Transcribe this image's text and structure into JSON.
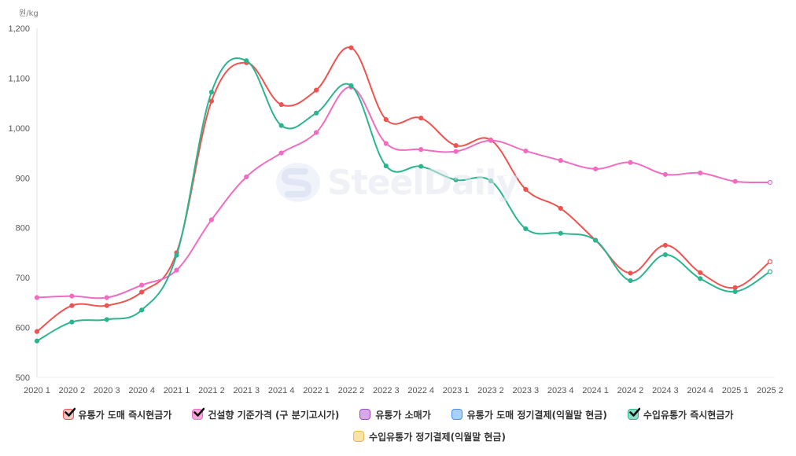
{
  "chart_data": {
    "type": "line",
    "title": "",
    "ylabel": "원/kg",
    "xlabel": "",
    "ylim": [
      500,
      1200
    ],
    "yticks": [
      500,
      600,
      700,
      800,
      900,
      1000,
      1100,
      1200
    ],
    "ytick_labels": [
      "500",
      "600",
      "700",
      "800",
      "900",
      "1,000",
      "1,100",
      "1,200"
    ],
    "grid": false,
    "legend_position": "bottom",
    "categories": [
      "2020 1",
      "2020 2",
      "2020 3",
      "2020 4",
      "2021 1",
      "2021 2",
      "2021 3",
      "2021 4",
      "2022 1",
      "2022 2",
      "2022 3",
      "2022 4",
      "2023 1",
      "2023 2",
      "2023 3",
      "2023 4",
      "2024 1",
      "2024 2",
      "2024 3",
      "2024 4",
      "2025 1",
      "2025 2"
    ],
    "series": [
      {
        "name": "유통가 도매 즉시현금가",
        "color": "#ef5350",
        "box_fill": "#f8c4c4",
        "checked": true,
        "visible": true,
        "values": [
          592,
          644,
          644,
          671,
          750,
          1054,
          1131,
          1047,
          1076,
          1161,
          1017,
          1020,
          965,
          976,
          877,
          839,
          775,
          709,
          765,
          710,
          680,
          732
        ]
      },
      {
        "name": "건설향 기준가격 (구 분기고시가)",
        "color": "#f06cc0",
        "box_fill": "#f7a8d8",
        "checked": true,
        "visible": true,
        "values": [
          660,
          663,
          660,
          685,
          715,
          816,
          902,
          950,
          991,
          1082,
          969,
          957,
          953,
          975,
          954,
          935,
          918,
          931,
          907,
          910,
          893,
          891
        ]
      },
      {
        "name": "유통가 소매가",
        "color": "#a04cc0",
        "box_fill": "#d9a8e8",
        "checked": false,
        "visible": false,
        "values": []
      },
      {
        "name": "유통가 도매 정기결제(익월말 현금)",
        "color": "#4a90e2",
        "box_fill": "#a9d0f7",
        "checked": false,
        "visible": false,
        "values": []
      },
      {
        "name": "수입유통가 즉시현금가",
        "color": "#2bb58f",
        "box_fill": "#8fdcc4",
        "checked": true,
        "visible": true,
        "values": [
          573,
          611,
          616,
          635,
          745,
          1072,
          1135,
          1005,
          1030,
          1085,
          924,
          923,
          896,
          894,
          798,
          789,
          775,
          694,
          746,
          698,
          672,
          712
        ]
      },
      {
        "name": "수입유통가 정기결제(익월말 현금)",
        "color": "#e8b84a",
        "box_fill": "#fae3a6",
        "checked": false,
        "visible": false,
        "values": []
      }
    ],
    "watermark": "SteelDaily"
  }
}
